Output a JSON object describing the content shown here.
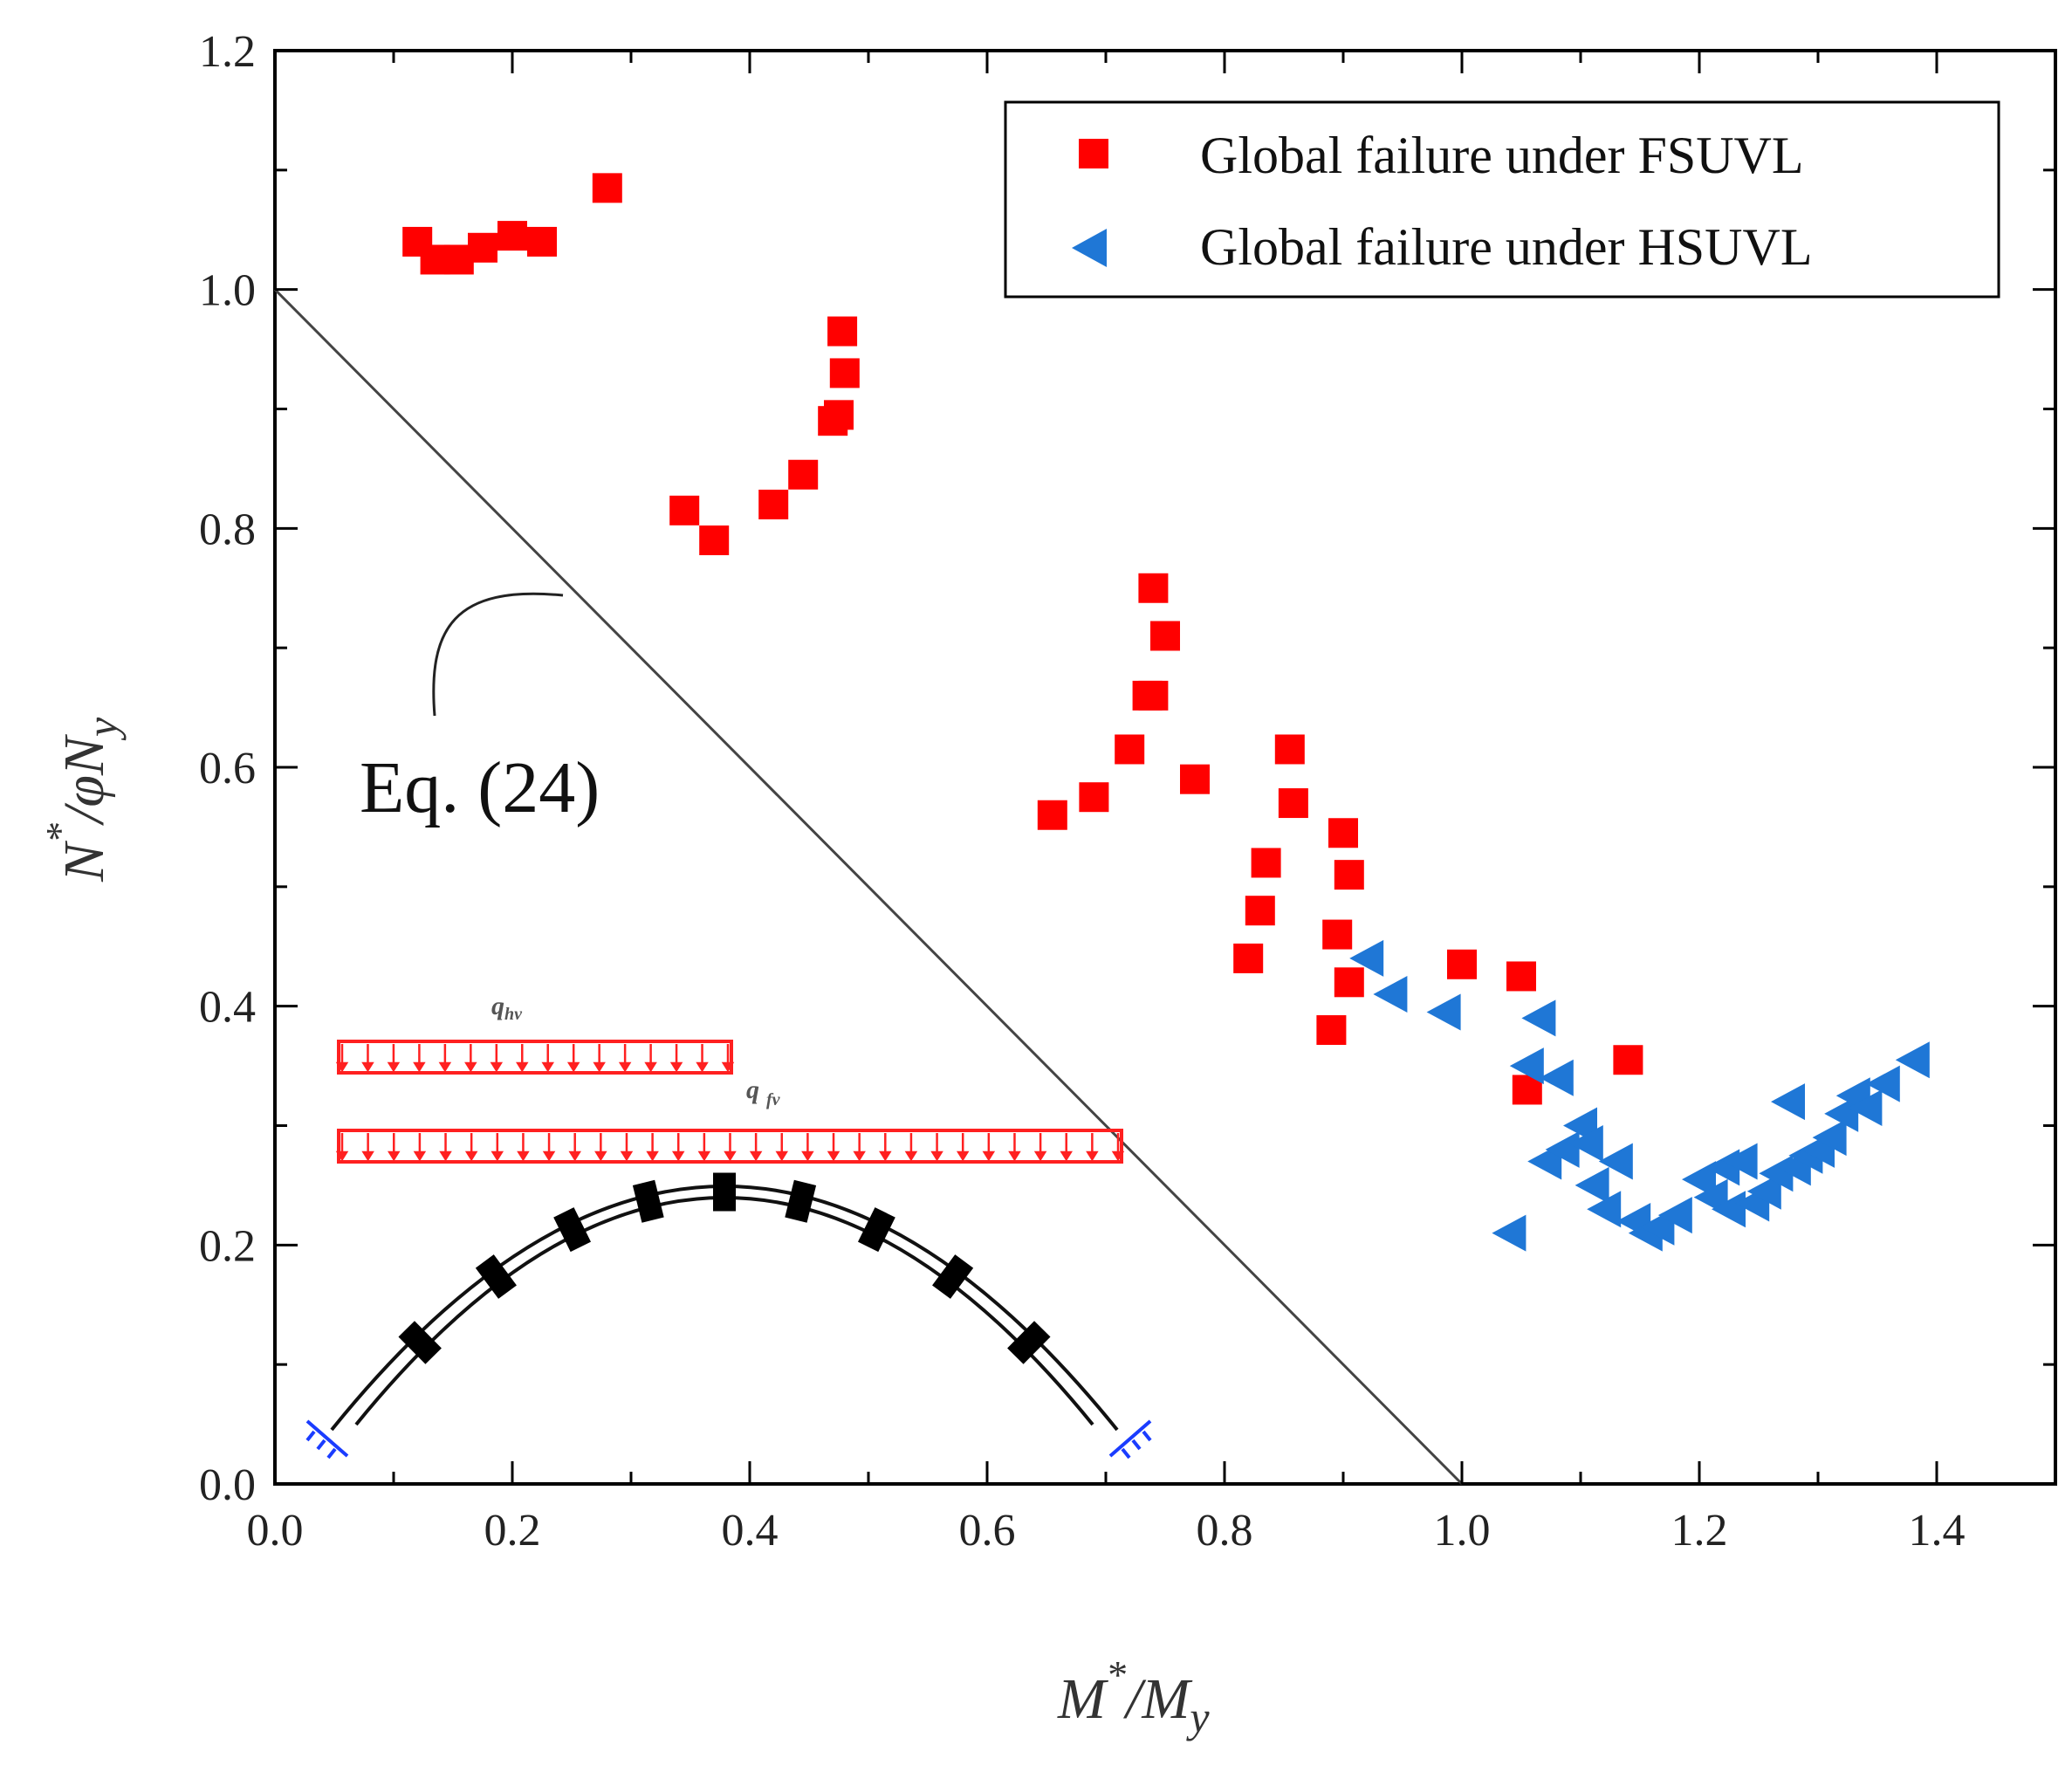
{
  "chart_data": {
    "type": "scatter",
    "xlabel": {
      "main": "M",
      "sup": "*",
      "rest": "/M",
      "sub": "y"
    },
    "ylabel": {
      "main": "N",
      "sup": "*",
      "rest": "/φN",
      "sub": "y"
    },
    "xlim": [
      0,
      1.5
    ],
    "ylim": [
      0,
      1.2
    ],
    "xticks": [
      "0.0",
      "0.2",
      "0.4",
      "0.6",
      "0.8",
      "1.0",
      "1.2",
      "1.4"
    ],
    "yticks": [
      "0.0",
      "0.2",
      "0.4",
      "0.6",
      "0.8",
      "1.0",
      "1.2"
    ],
    "xtick_values": [
      0,
      0.2,
      0.4,
      0.6,
      0.8,
      1.0,
      1.2,
      1.4
    ],
    "ytick_values": [
      0,
      0.2,
      0.4,
      0.6,
      0.8,
      1.0,
      1.2
    ],
    "series": [
      {
        "name": "Global failure under FSUVL",
        "marker": "square",
        "color": "#ff0000",
        "points": [
          [
            0.12,
            1.04
          ],
          [
            0.135,
            1.025
          ],
          [
            0.155,
            1.025
          ],
          [
            0.175,
            1.035
          ],
          [
            0.2,
            1.045
          ],
          [
            0.225,
            1.04
          ],
          [
            0.28,
            1.085
          ],
          [
            0.345,
            0.815
          ],
          [
            0.37,
            0.79
          ],
          [
            0.42,
            0.82
          ],
          [
            0.445,
            0.845
          ],
          [
            0.47,
            0.89
          ],
          [
            0.475,
            0.895
          ],
          [
            0.478,
            0.965
          ],
          [
            0.48,
            0.93
          ],
          [
            0.655,
            0.56
          ],
          [
            0.69,
            0.575
          ],
          [
            0.72,
            0.615
          ],
          [
            0.735,
            0.66
          ],
          [
            0.74,
            0.66
          ],
          [
            0.74,
            0.75
          ],
          [
            0.75,
            0.71
          ],
          [
            0.775,
            0.59
          ],
          [
            0.82,
            0.44
          ],
          [
            0.83,
            0.48
          ],
          [
            0.835,
            0.52
          ],
          [
            0.855,
            0.615
          ],
          [
            0.858,
            0.57
          ],
          [
            0.89,
            0.38
          ],
          [
            0.895,
            0.46
          ],
          [
            0.9,
            0.545
          ],
          [
            0.905,
            0.42
          ],
          [
            0.905,
            0.51
          ],
          [
            1.0,
            0.435
          ],
          [
            1.05,
            0.425
          ],
          [
            1.055,
            0.33
          ],
          [
            1.14,
            0.355
          ]
        ]
      },
      {
        "name": "Global failure under HSUVL",
        "marker": "left-triangle",
        "color": "#1f77d6",
        "points": [
          [
            0.92,
            0.44
          ],
          [
            0.94,
            0.41
          ],
          [
            0.985,
            0.395
          ],
          [
            1.04,
            0.21
          ],
          [
            1.055,
            0.35
          ],
          [
            1.065,
            0.39
          ],
          [
            1.08,
            0.34
          ],
          [
            1.07,
            0.27
          ],
          [
            1.085,
            0.28
          ],
          [
            1.1,
            0.3
          ],
          [
            1.105,
            0.285
          ],
          [
            1.11,
            0.25
          ],
          [
            1.12,
            0.23
          ],
          [
            1.13,
            0.27
          ],
          [
            1.145,
            0.22
          ],
          [
            1.155,
            0.21
          ],
          [
            1.165,
            0.215
          ],
          [
            1.18,
            0.225
          ],
          [
            1.2,
            0.255
          ],
          [
            1.21,
            0.24
          ],
          [
            1.22,
            0.265
          ],
          [
            1.225,
            0.23
          ],
          [
            1.235,
            0.27
          ],
          [
            1.245,
            0.235
          ],
          [
            1.255,
            0.245
          ],
          [
            1.265,
            0.26
          ],
          [
            1.275,
            0.32
          ],
          [
            1.28,
            0.265
          ],
          [
            1.29,
            0.275
          ],
          [
            1.3,
            0.28
          ],
          [
            1.31,
            0.29
          ],
          [
            1.32,
            0.31
          ],
          [
            1.33,
            0.325
          ],
          [
            1.34,
            0.315
          ],
          [
            1.355,
            0.335
          ],
          [
            1.38,
            0.355
          ]
        ]
      }
    ],
    "reference_line": {
      "label": "Eq. (24)",
      "from": [
        0,
        1.0
      ],
      "to": [
        1.0,
        0
      ]
    },
    "legend_position": "top-right",
    "annotations": {
      "eq_label": "Eq. (24)",
      "load_hv": "q",
      "load_hv_sub": "hv",
      "load_fv": "q",
      "load_fv_sub": "fv"
    }
  }
}
